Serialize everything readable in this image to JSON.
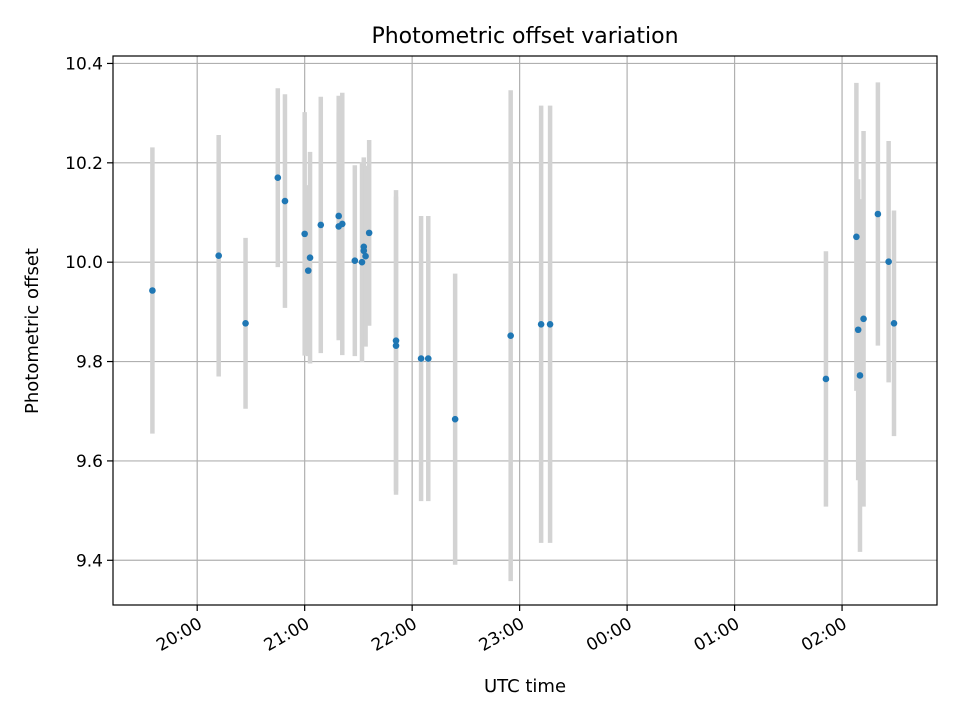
{
  "chart_data": {
    "type": "scatter",
    "title": "Photometric offset variation",
    "xlabel": "UTC time",
    "ylabel": "Photometric offset",
    "xlim": [
      "19:13",
      "02:53"
    ],
    "ylim": [
      9.31,
      10.415
    ],
    "x_ticks": [
      "20:00",
      "21:00",
      "22:00",
      "23:00",
      "00:00",
      "01:00",
      "02:00"
    ],
    "y_ticks": [
      "9.4",
      "9.6",
      "9.8",
      "10.0",
      "10.2",
      "10.4"
    ],
    "grid": true,
    "marker_color": "#1f77b4",
    "errorbar_color": "#d3d3d3",
    "points": [
      {
        "t": "19:35",
        "y": 9.943,
        "err": 0.288
      },
      {
        "t": "20:12",
        "y": 10.013,
        "err": 0.243
      },
      {
        "t": "20:27",
        "y": 9.877,
        "err": 0.172
      },
      {
        "t": "20:45",
        "y": 10.17,
        "err": 0.18
      },
      {
        "t": "20:49",
        "y": 10.123,
        "err": 0.215
      },
      {
        "t": "21:00",
        "y": 10.057,
        "err": 0.245
      },
      {
        "t": "21:02",
        "y": 9.983,
        "err": 0.172
      },
      {
        "t": "21:03",
        "y": 10.009,
        "err": 0.213
      },
      {
        "t": "21:09",
        "y": 10.075,
        "err": 0.258
      },
      {
        "t": "21:19",
        "y": 10.093,
        "err": 0.242
      },
      {
        "t": "21:19",
        "y": 10.072,
        "err": 0.229
      },
      {
        "t": "21:21",
        "y": 10.077,
        "err": 0.264
      },
      {
        "t": "21:28",
        "y": 10.003,
        "err": 0.192
      },
      {
        "t": "21:32",
        "y": 10.0,
        "err": 0.201
      },
      {
        "t": "21:33",
        "y": 10.023,
        "err": 0.188
      },
      {
        "t": "21:33",
        "y": 10.031,
        "err": 0.177
      },
      {
        "t": "21:34",
        "y": 10.012,
        "err": 0.182
      },
      {
        "t": "21:36",
        "y": 10.059,
        "err": 0.187
      },
      {
        "t": "21:51",
        "y": 9.832,
        "err": 0.3
      },
      {
        "t": "21:51",
        "y": 9.842,
        "err": 0.303
      },
      {
        "t": "22:05",
        "y": 9.806,
        "err": 0.287
      },
      {
        "t": "22:09",
        "y": 9.806,
        "err": 0.287
      },
      {
        "t": "22:24",
        "y": 9.684,
        "err": 0.293
      },
      {
        "t": "22:55",
        "y": 9.852,
        "err": 0.494
      },
      {
        "t": "23:12",
        "y": 9.875,
        "err": 0.44
      },
      {
        "t": "23:17",
        "y": 9.875,
        "err": 0.44
      },
      {
        "t": "01:51",
        "y": 9.765,
        "err": 0.257
      },
      {
        "t": "02:08",
        "y": 10.051,
        "err": 0.31
      },
      {
        "t": "02:09",
        "y": 9.864,
        "err": 0.303
      },
      {
        "t": "02:10",
        "y": 9.772,
        "err": 0.355
      },
      {
        "t": "02:12",
        "y": 9.886,
        "err": 0.378
      },
      {
        "t": "02:20",
        "y": 10.097,
        "err": 0.265
      },
      {
        "t": "02:26",
        "y": 10.001,
        "err": 0.243
      },
      {
        "t": "02:29",
        "y": 9.877,
        "err": 0.227
      }
    ]
  }
}
